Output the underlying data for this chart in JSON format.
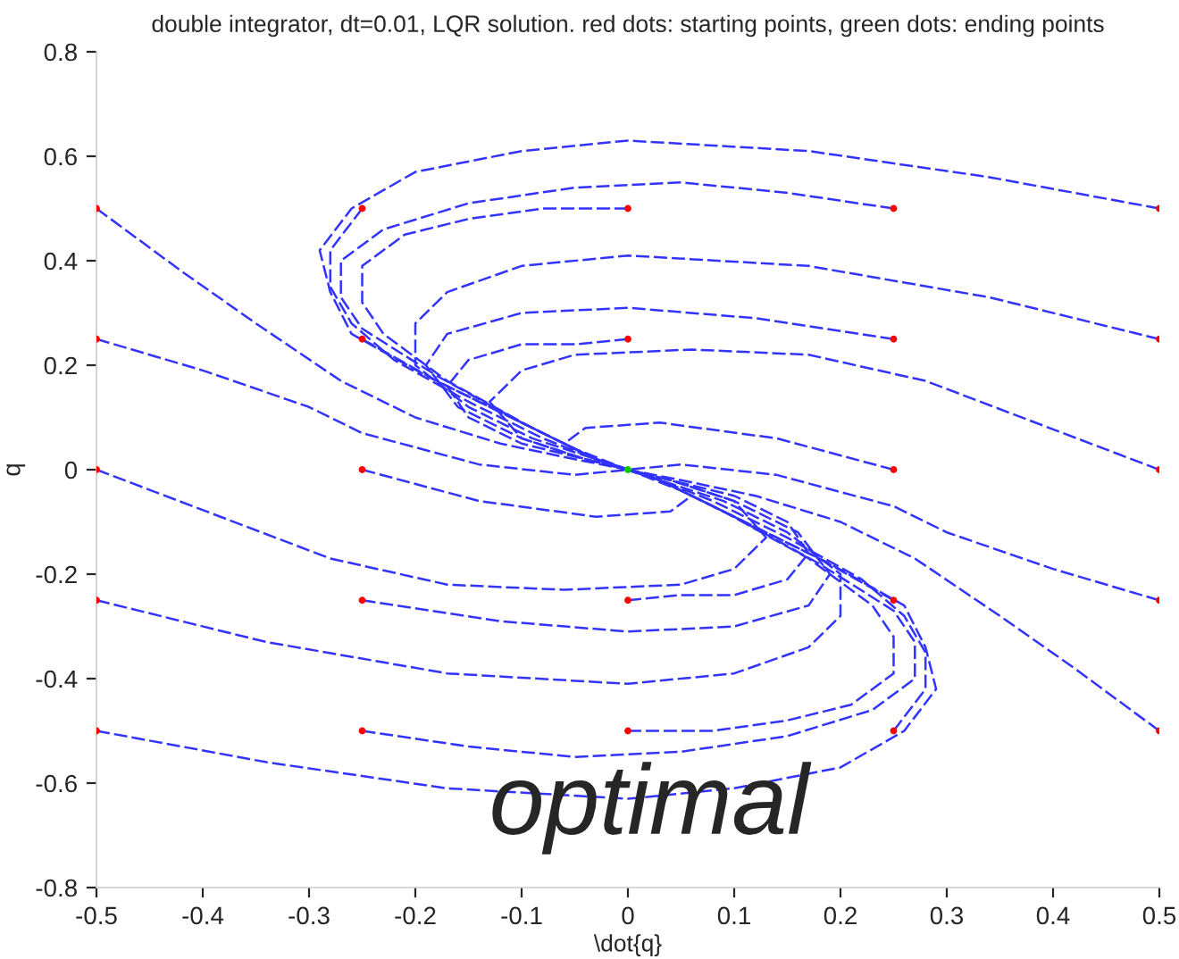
{
  "chart_data": {
    "type": "line",
    "title": "double integrator, dt=0.01, LQR solution. red dots: starting points, green dots: ending points",
    "xlabel": "\\dot{q}",
    "ylabel": "q",
    "xlim": [
      -0.5,
      0.5
    ],
    "ylim": [
      -0.8,
      0.8
    ],
    "xticks": [
      -0.5,
      -0.4,
      -0.3,
      -0.2,
      -0.1,
      0,
      0.1,
      0.2,
      0.3,
      0.4,
      0.5
    ],
    "yticks": [
      -0.8,
      -0.6,
      -0.4,
      -0.2,
      0,
      0.2,
      0.4,
      0.6,
      0.8
    ],
    "grid": false,
    "legend": false,
    "line_style": "dashed",
    "marker": "none",
    "annotations": [
      "optimal"
    ],
    "series": [
      {
        "color": "#3333ff",
        "x": [
          -0.5,
          -0.42,
          -0.35,
          -0.27,
          -0.2,
          -0.12,
          -0.05,
          0
        ],
        "values": [
          0.5,
          0.38,
          0.28,
          0.17,
          0.1,
          0.05,
          0.02,
          0
        ]
      },
      {
        "color": "#3333ff",
        "x": [
          0.5,
          0.42,
          0.35,
          0.27,
          0.2,
          0.12,
          0.05,
          0
        ],
        "values": [
          -0.5,
          -0.38,
          -0.28,
          -0.17,
          -0.1,
          -0.05,
          -0.02,
          0
        ]
      },
      {
        "color": "#3333ff",
        "x": [
          -0.5,
          -0.4,
          -0.3,
          -0.25,
          -0.14,
          -0.05,
          0
        ],
        "values": [
          0.25,
          0.19,
          0.12,
          0.07,
          0.01,
          -0.01,
          0
        ]
      },
      {
        "color": "#3333ff",
        "x": [
          0.5,
          0.4,
          0.3,
          0.25,
          0.14,
          0.05,
          0
        ],
        "values": [
          -0.25,
          -0.19,
          -0.12,
          -0.07,
          -0.01,
          0.01,
          0
        ]
      },
      {
        "color": "#3333ff",
        "x": [
          -0.5,
          -0.28,
          -0.17,
          -0.06,
          0.05,
          0.1,
          0.13,
          0.1,
          0.04,
          0
        ],
        "values": [
          0,
          -0.17,
          -0.22,
          -0.23,
          -0.22,
          -0.19,
          -0.13,
          -0.06,
          -0.02,
          0
        ]
      },
      {
        "color": "#3333ff",
        "x": [
          0.5,
          0.28,
          0.17,
          0.06,
          -0.05,
          -0.1,
          -0.13,
          -0.1,
          -0.04,
          0
        ],
        "values": [
          0,
          0.17,
          0.22,
          0.23,
          0.22,
          0.19,
          0.13,
          0.06,
          0.02,
          0
        ]
      },
      {
        "color": "#3333ff",
        "x": [
          -0.25,
          -0.14,
          -0.03,
          0.04,
          0.06,
          0.03,
          0
        ],
        "values": [
          0,
          -0.06,
          -0.09,
          -0.08,
          -0.05,
          -0.02,
          0
        ]
      },
      {
        "color": "#3333ff",
        "x": [
          0.25,
          0.14,
          0.03,
          -0.04,
          -0.06,
          -0.03,
          0
        ],
        "values": [
          0,
          0.06,
          0.09,
          0.08,
          0.05,
          0.02,
          0
        ]
      },
      {
        "color": "#3333ff",
        "x": [
          -0.25,
          -0.28,
          -0.28,
          -0.26,
          -0.22,
          -0.15,
          -0.08,
          -0.03,
          0
        ],
        "values": [
          0.5,
          0.42,
          0.35,
          0.28,
          0.21,
          0.13,
          0.06,
          0.02,
          0
        ]
      },
      {
        "color": "#3333ff",
        "x": [
          0.25,
          0.28,
          0.28,
          0.26,
          0.22,
          0.15,
          0.08,
          0.03,
          0
        ],
        "values": [
          -0.5,
          -0.42,
          -0.35,
          -0.28,
          -0.21,
          -0.13,
          -0.06,
          -0.02,
          0
        ]
      },
      {
        "color": "#3333ff",
        "x": [
          0,
          -0.08,
          -0.15,
          -0.21,
          -0.25,
          -0.25,
          -0.23,
          -0.17,
          -0.09,
          -0.03,
          0
        ],
        "values": [
          0.5,
          0.5,
          0.48,
          0.45,
          0.39,
          0.32,
          0.26,
          0.17,
          0.08,
          0.02,
          0
        ]
      },
      {
        "color": "#3333ff",
        "x": [
          0,
          0.08,
          0.15,
          0.21,
          0.25,
          0.25,
          0.23,
          0.17,
          0.09,
          0.03,
          0
        ],
        "values": [
          -0.5,
          -0.5,
          -0.48,
          -0.45,
          -0.39,
          -0.32,
          -0.26,
          -0.17,
          -0.08,
          -0.02,
          0
        ]
      },
      {
        "color": "#3333ff",
        "x": [
          0.25,
          0.15,
          0.05,
          -0.05,
          -0.15,
          -0.23,
          -0.27,
          -0.27,
          -0.25,
          -0.18,
          -0.1,
          -0.03,
          0
        ],
        "values": [
          0.5,
          0.53,
          0.55,
          0.54,
          0.51,
          0.46,
          0.4,
          0.33,
          0.27,
          0.18,
          0.09,
          0.02,
          0
        ]
      },
      {
        "color": "#3333ff",
        "x": [
          -0.25,
          -0.15,
          -0.05,
          0.05,
          0.15,
          0.23,
          0.27,
          0.27,
          0.25,
          0.18,
          0.1,
          0.03,
          0
        ],
        "values": [
          -0.5,
          -0.53,
          -0.55,
          -0.54,
          -0.51,
          -0.46,
          -0.4,
          -0.33,
          -0.27,
          -0.18,
          -0.09,
          -0.02,
          0
        ]
      },
      {
        "color": "#3333ff",
        "x": [
          0.5,
          0.34,
          0.17,
          0,
          -0.1,
          -0.2,
          -0.26,
          -0.29,
          -0.28,
          -0.26,
          -0.19,
          -0.1,
          -0.03,
          0
        ],
        "values": [
          0.5,
          0.56,
          0.61,
          0.63,
          0.61,
          0.57,
          0.5,
          0.42,
          0.34,
          0.26,
          0.18,
          0.09,
          0.02,
          0
        ]
      },
      {
        "color": "#3333ff",
        "x": [
          -0.5,
          -0.34,
          -0.17,
          0,
          0.1,
          0.2,
          0.26,
          0.29,
          0.28,
          0.26,
          0.19,
          0.1,
          0.03,
          0
        ],
        "values": [
          -0.5,
          -0.56,
          -0.61,
          -0.63,
          -0.61,
          -0.57,
          -0.5,
          -0.42,
          -0.34,
          -0.26,
          -0.18,
          -0.09,
          -0.02,
          0
        ]
      },
      {
        "color": "#3333ff",
        "x": [
          -0.25,
          -0.18,
          -0.1,
          -0.05,
          0
        ],
        "values": [
          0.25,
          0.17,
          0.09,
          0.04,
          0
        ]
      },
      {
        "color": "#3333ff",
        "x": [
          0.25,
          0.18,
          0.1,
          0.05,
          0
        ],
        "values": [
          -0.25,
          -0.17,
          -0.09,
          -0.04,
          0
        ]
      },
      {
        "color": "#3333ff",
        "x": [
          0,
          -0.05,
          -0.1,
          -0.15,
          -0.17,
          -0.15,
          -0.1,
          -0.04,
          0
        ],
        "values": [
          0.25,
          0.24,
          0.24,
          0.21,
          0.16,
          0.1,
          0.05,
          0.02,
          0
        ]
      },
      {
        "color": "#3333ff",
        "x": [
          0,
          0.05,
          0.1,
          0.15,
          0.17,
          0.15,
          0.1,
          0.04,
          0
        ],
        "values": [
          -0.25,
          -0.24,
          -0.24,
          -0.21,
          -0.16,
          -0.1,
          -0.05,
          -0.02,
          0
        ]
      },
      {
        "color": "#3333ff",
        "x": [
          0.25,
          0.12,
          0,
          -0.1,
          -0.17,
          -0.19,
          -0.16,
          -0.1,
          -0.04,
          0
        ],
        "values": [
          0.25,
          0.29,
          0.31,
          0.3,
          0.26,
          0.2,
          0.12,
          0.06,
          0.02,
          0
        ]
      },
      {
        "color": "#3333ff",
        "x": [
          -0.25,
          -0.12,
          0,
          0.1,
          0.17,
          0.19,
          0.16,
          0.1,
          0.04,
          0
        ],
        "values": [
          -0.25,
          -0.29,
          -0.31,
          -0.3,
          -0.26,
          -0.2,
          -0.12,
          -0.06,
          -0.02,
          0
        ]
      },
      {
        "color": "#3333ff",
        "x": [
          0.5,
          0.34,
          0.17,
          0,
          -0.1,
          -0.17,
          -0.2,
          -0.2,
          -0.15,
          -0.09,
          -0.03,
          0
        ],
        "values": [
          0.25,
          0.33,
          0.39,
          0.41,
          0.39,
          0.34,
          0.28,
          0.2,
          0.12,
          0.06,
          0.02,
          0
        ]
      },
      {
        "color": "#3333ff",
        "x": [
          -0.5,
          -0.34,
          -0.17,
          0,
          0.1,
          0.17,
          0.2,
          0.2,
          0.15,
          0.09,
          0.03,
          0
        ],
        "values": [
          -0.25,
          -0.33,
          -0.39,
          -0.41,
          -0.39,
          -0.34,
          -0.28,
          -0.2,
          -0.12,
          -0.06,
          -0.02,
          0
        ]
      },
      {
        "type": "scatter",
        "marker": "circle",
        "color": "#ff0000",
        "x": [
          -0.5,
          -0.25,
          0,
          0.25,
          0.5,
          -0.5,
          -0.25,
          0,
          0.25,
          0.5,
          -0.5,
          -0.25,
          0.25,
          0.5,
          -0.5,
          -0.25,
          0,
          0.25,
          0.5,
          -0.5,
          -0.25,
          0,
          0.25,
          0.5
        ],
        "values": [
          0.5,
          0.5,
          0.5,
          0.5,
          0.5,
          0.25,
          0.25,
          0.25,
          0.25,
          0.25,
          0,
          0,
          0,
          0,
          -0.25,
          -0.25,
          -0.25,
          -0.25,
          -0.25,
          -0.5,
          -0.5,
          -0.5,
          -0.5,
          -0.5
        ]
      },
      {
        "type": "scatter",
        "marker": "circle",
        "color": "#00cc00",
        "x": [
          0
        ],
        "values": [
          0
        ]
      }
    ]
  }
}
